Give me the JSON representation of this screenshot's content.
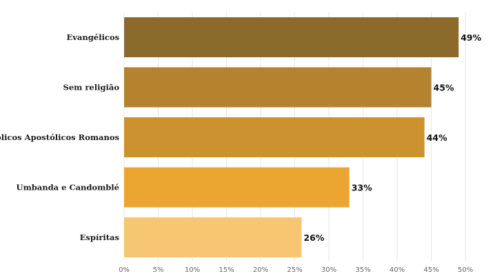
{
  "chart_data": {
    "type": "bar",
    "orientation": "horizontal",
    "title": "",
    "xlabel": "",
    "ylabel": "",
    "categories": [
      "Evangélicos",
      "Sem religião",
      "Católicos Apostólicos Romanos",
      "Umbanda e Candomblé",
      "Espíritas"
    ],
    "values": [
      49,
      45,
      44,
      33,
      26
    ],
    "value_labels": [
      "49%",
      "45%",
      "44%",
      "33%",
      "26%"
    ],
    "colors": [
      "#8c6a2c",
      "#b5832f",
      "#cc922f",
      "#eba631",
      "#f7c673"
    ],
    "xlim": [
      0,
      50
    ],
    "xticks": [
      0,
      5,
      10,
      15,
      20,
      25,
      30,
      35,
      40,
      45,
      50
    ],
    "xtick_labels": [
      "0%",
      "5%",
      "10%",
      "15%",
      "20%",
      "25%",
      "30%",
      "35%",
      "40%",
      "45%",
      "50%"
    ],
    "grid": true,
    "legend": "none"
  }
}
